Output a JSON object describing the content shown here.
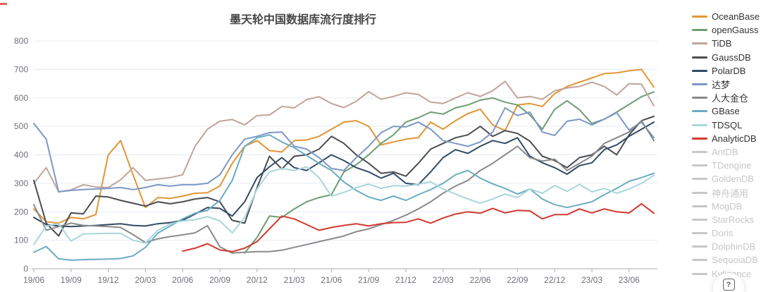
{
  "chart_data": {
    "type": "line",
    "title": "墨天轮中国数据库流行度排行",
    "x_start": "19/06",
    "x_interval": "monthly",
    "n_points": 51,
    "x_tick_labels": [
      "19/06",
      "19/09",
      "19/12",
      "20/03",
      "20/06",
      "20/09",
      "20/12",
      "21/03",
      "21/06",
      "21/09",
      "21/12",
      "22/03",
      "22/06",
      "22/09",
      "22/12",
      "23/03",
      "23/06"
    ],
    "y_ticks": [
      0,
      100,
      200,
      300,
      400,
      500,
      600,
      700,
      800
    ],
    "ylim": [
      0,
      800
    ],
    "grid": true,
    "legend_position": "right",
    "colors": {
      "grid_line": "#E5ECF5",
      "axis_line": "#A9ACB3",
      "tick_label": "#6E7079",
      "legend_active_text": "#333333",
      "legend_disabled": "#C7C7C7"
    },
    "series": [
      {
        "name": "OceanBase",
        "color": "#E09635",
        "active": true,
        "values": [
          210,
          165,
          160,
          180,
          175,
          190,
          400,
          450,
          330,
          215,
          250,
          247,
          255,
          265,
          267,
          290,
          370,
          430,
          450,
          415,
          410,
          450,
          452,
          465,
          490,
          515,
          520,
          500,
          435,
          445,
          455,
          460,
          515,
          490,
          520,
          545,
          560,
          505,
          485,
          575,
          580,
          570,
          615,
          640,
          655,
          670,
          685,
          688,
          695,
          700,
          638
        ]
      },
      {
        "name": "openGauss",
        "color": "#6C9D74",
        "active": true,
        "values": [
          null,
          null,
          null,
          null,
          null,
          null,
          null,
          null,
          null,
          null,
          null,
          null,
          null,
          null,
          null,
          null,
          null,
          55,
          110,
          185,
          180,
          210,
          235,
          250,
          260,
          340,
          365,
          400,
          440,
          470,
          515,
          530,
          550,
          543,
          565,
          575,
          592,
          600,
          585,
          575,
          540,
          490,
          560,
          590,
          558,
          510,
          525,
          550,
          577,
          604,
          621
        ]
      },
      {
        "name": "TiDB",
        "color": "#C1A49B",
        "active": true,
        "values": [
          300,
          355,
          270,
          277,
          295,
          287,
          285,
          312,
          355,
          310,
          315,
          320,
          330,
          430,
          490,
          518,
          524,
          505,
          538,
          540,
          570,
          565,
          594,
          604,
          580,
          566,
          588,
          622,
          595,
          605,
          618,
          612,
          585,
          580,
          600,
          618,
          605,
          625,
          658,
          600,
          605,
          595,
          625,
          635,
          640,
          655,
          640,
          610,
          650,
          648,
          572
        ]
      },
      {
        "name": "GaussDB",
        "color": "#4A4D52",
        "active": true,
        "values": [
          310,
          160,
          115,
          196,
          193,
          255,
          252,
          240,
          230,
          220,
          235,
          228,
          235,
          245,
          250,
          235,
          170,
          160,
          285,
          395,
          350,
          395,
          400,
          420,
          465,
          440,
          400,
          370,
          335,
          340,
          325,
          370,
          420,
          440,
          460,
          470,
          500,
          465,
          485,
          475,
          448,
          395,
          380,
          355,
          390,
          400,
          430,
          400,
          470,
          520,
          535
        ]
      },
      {
        "name": "PolarDB",
        "color": "#334A64",
        "active": true,
        "values": [
          180,
          155,
          150,
          148,
          150,
          152,
          155,
          158,
          152,
          150,
          158,
          162,
          170,
          192,
          215,
          212,
          185,
          235,
          320,
          358,
          390,
          355,
          345,
          372,
          400,
          380,
          355,
          340,
          318,
          335,
          300,
          295,
          340,
          390,
          418,
          405,
          430,
          450,
          440,
          460,
          395,
          372,
          355,
          332,
          362,
          372,
          418,
          435,
          465,
          490,
          515
        ]
      },
      {
        "name": "达梦",
        "color": "#7B98C7",
        "active": true,
        "values": [
          510,
          455,
          270,
          275,
          278,
          280,
          282,
          285,
          278,
          285,
          295,
          290,
          295,
          295,
          300,
          330,
          400,
          455,
          465,
          478,
          480,
          430,
          420,
          390,
          352,
          345,
          390,
          430,
          478,
          500,
          498,
          515,
          490,
          450,
          440,
          430,
          445,
          480,
          565,
          538,
          550,
          480,
          468,
          518,
          525,
          505,
          525,
          548,
          487,
          515,
          460
        ]
      },
      {
        "name": "人大金仓",
        "color": "#8A8A8C",
        "active": true,
        "values": [
          225,
          135,
          148,
          160,
          152,
          150,
          148,
          145,
          120,
          92,
          105,
          113,
          119,
          126,
          151,
          77,
          55,
          58,
          60,
          60,
          65,
          75,
          85,
          95,
          105,
          115,
          130,
          140,
          155,
          170,
          188,
          210,
          235,
          265,
          290,
          310,
          345,
          370,
          400,
          430,
          390,
          378,
          385,
          345,
          370,
          395,
          440,
          460,
          480,
          520,
          450
        ]
      },
      {
        "name": "GBase",
        "color": "#69ACC2",
        "active": true,
        "values": [
          58,
          78,
          35,
          30,
          32,
          33,
          34,
          36,
          45,
          75,
          125,
          150,
          175,
          195,
          205,
          240,
          310,
          430,
          460,
          470,
          445,
          425,
          398,
          370,
          345,
          305,
          275,
          252,
          240,
          255,
          240,
          260,
          278,
          300,
          330,
          345,
          318,
          298,
          282,
          262,
          280,
          245,
          225,
          215,
          225,
          235,
          260,
          282,
          307,
          320,
          335
        ]
      },
      {
        "name": "TDSQL",
        "color": "#A8D6DC",
        "active": true,
        "values": [
          85,
          150,
          158,
          97,
          122,
          123,
          124,
          124,
          100,
          90,
          135,
          158,
          168,
          172,
          183,
          168,
          126,
          180,
          280,
          340,
          352,
          345,
          358,
          320,
          255,
          268,
          285,
          297,
          282,
          292,
          290,
          297,
          305,
          280,
          262,
          245,
          230,
          245,
          262,
          250,
          280,
          265,
          292,
          272,
          296,
          270,
          282,
          265,
          280,
          300,
          328
        ]
      },
      {
        "name": "AnalyticDB",
        "color": "#D3392F",
        "active": true,
        "values": [
          null,
          null,
          null,
          null,
          null,
          null,
          null,
          null,
          null,
          null,
          null,
          null,
          62,
          72,
          88,
          66,
          60,
          72,
          95,
          140,
          185,
          175,
          155,
          135,
          145,
          152,
          158,
          150,
          158,
          162,
          163,
          175,
          160,
          178,
          192,
          200,
          195,
          212,
          196,
          205,
          203,
          175,
          190,
          190,
          210,
          196,
          210,
          200,
          196,
          228,
          195
        ]
      },
      {
        "name": "AntDB",
        "color": "#C7C7C7",
        "active": false,
        "values": null
      },
      {
        "name": "TDengine",
        "color": "#C7C7C7",
        "active": false,
        "values": null
      },
      {
        "name": "GoldenDB",
        "color": "#C7C7C7",
        "active": false,
        "values": null
      },
      {
        "name": "神舟通用",
        "color": "#C7C7C7",
        "active": false,
        "values": null
      },
      {
        "name": "MogDB",
        "color": "#C7C7C7",
        "active": false,
        "values": null
      },
      {
        "name": "StarRocks",
        "color": "#C7C7C7",
        "active": false,
        "values": null
      },
      {
        "name": "Doris",
        "color": "#C7C7C7",
        "active": false,
        "values": null
      },
      {
        "name": "DolphinDB",
        "color": "#C7C7C7",
        "active": false,
        "values": null
      },
      {
        "name": "SequoiaDB",
        "color": "#C7C7C7",
        "active": false,
        "values": null
      },
      {
        "name": "Kyligence",
        "color": "#C7C7C7",
        "active": false,
        "values": null
      }
    ]
  },
  "help_button": {
    "label": "?"
  }
}
